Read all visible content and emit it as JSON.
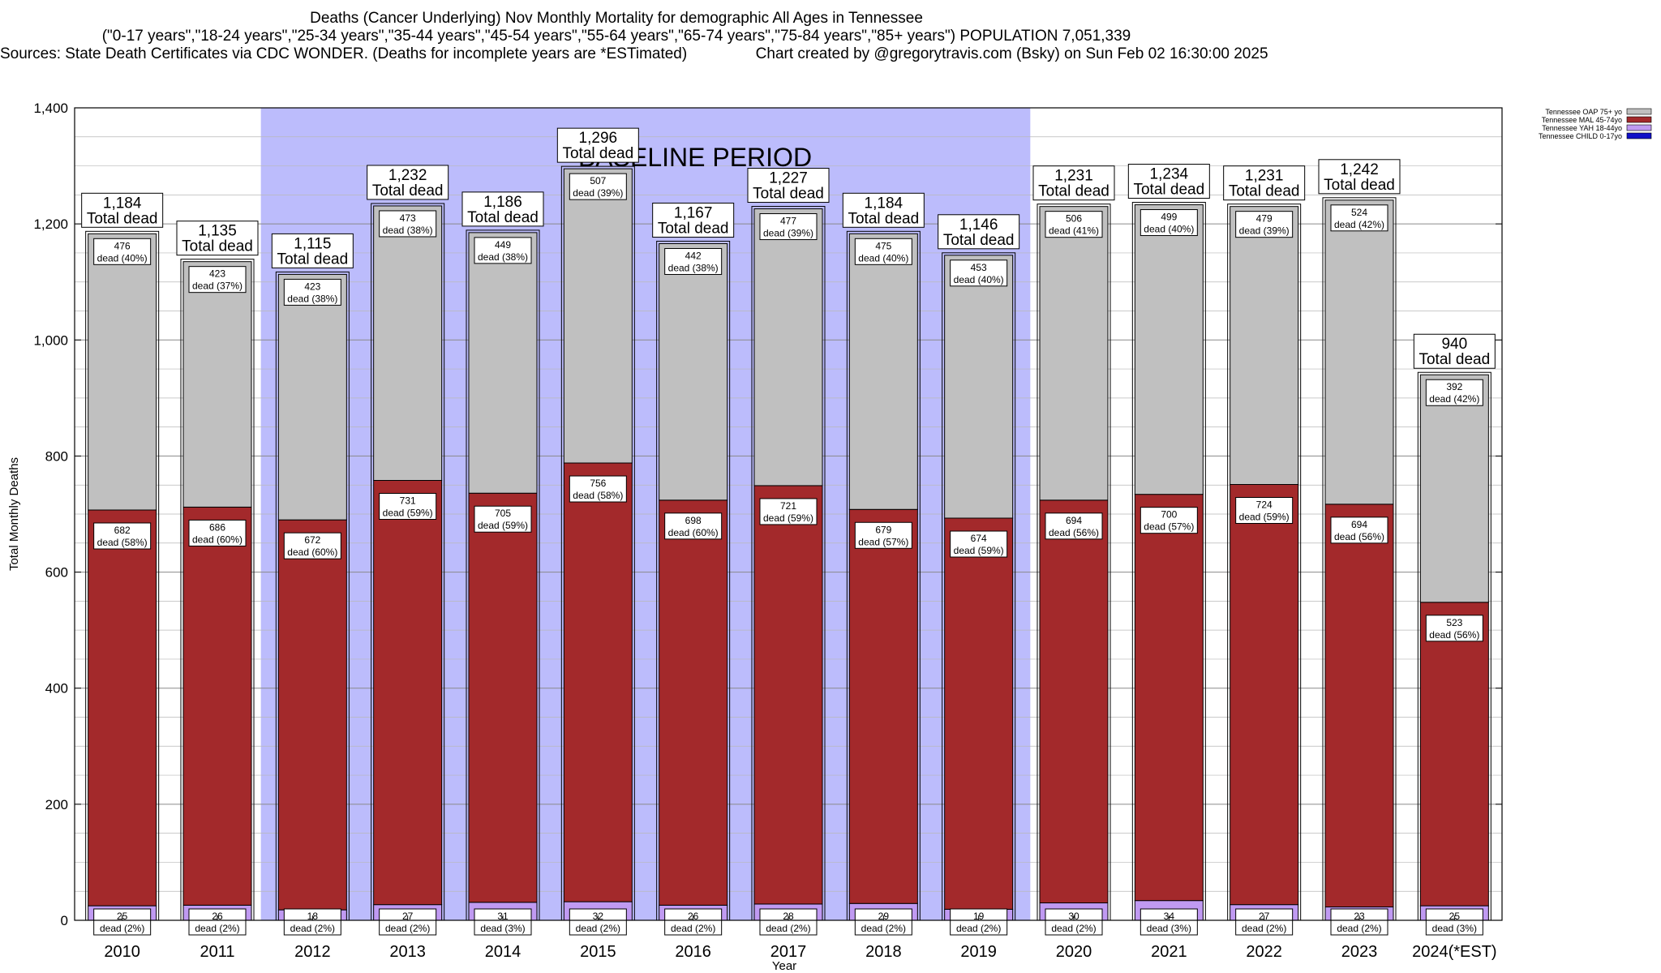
{
  "header": {
    "title": "Deaths (Cancer Underlying) Nov Monthly Mortality for demographic All Ages in Tennessee",
    "subtitle": "(\"0-17 years\",\"18-24 years\",\"25-34 years\",\"35-44 years\",\"45-54 years\",\"55-64 years\",\"65-74 years\",\"75-84 years\",\"85+ years\") POPULATION 7,051,339",
    "sources": "Sources: State Death Certificates via CDC WONDER. (Deaths for incomplete years are *ESTimated)",
    "credit": "Chart created by @gregorytravis.com (Bsky) on Sun Feb 02 16:30:00 2025"
  },
  "chart_data": {
    "type": "bar",
    "stacked": true,
    "xlabel": "Year",
    "ylabel": "Total Monthly Deaths",
    "ylim": [
      0,
      1400
    ],
    "yticks": [
      0,
      200,
      400,
      600,
      800,
      1000,
      1200,
      1400
    ],
    "ytick_labels": [
      "0",
      "200",
      "400",
      "600",
      "800",
      "1,000",
      "1,200",
      "1,400"
    ],
    "grid": true,
    "legend_position": "top-right",
    "categories": [
      "2010",
      "2011",
      "2012",
      "2013",
      "2014",
      "2015",
      "2016",
      "2017",
      "2018",
      "2019",
      "2020",
      "2021",
      "2022",
      "2023",
      "2024(*EST)"
    ],
    "series": [
      {
        "name": "Tennessee CHILD 0-17yo",
        "color": "#1010c8",
        "values": [
          0,
          0,
          0,
          0,
          0,
          0,
          0,
          0,
          0,
          0,
          0,
          0,
          0,
          0,
          0
        ]
      },
      {
        "name": "Tennessee YAH 18-44yo",
        "color": "#c09af2",
        "values": [
          25,
          26,
          18,
          27,
          31,
          32,
          26,
          28,
          29,
          19,
          30,
          34,
          27,
          23,
          25
        ],
        "labels": [
          "25",
          "26",
          "18",
          "27",
          "31",
          "32",
          "26",
          "28",
          "29",
          "19",
          "30",
          "34",
          "27",
          "23",
          "25"
        ],
        "pct_labels": [
          "dead (2%)",
          "dead (2%)",
          "dead (2%)",
          "dead (2%)",
          "dead (3%)",
          "dead (2%)",
          "dead (2%)",
          "dead (2%)",
          "dead (2%)",
          "dead (2%)",
          "dead (2%)",
          "dead (3%)",
          "dead (2%)",
          "dead (2%)",
          "dead (3%)"
        ]
      },
      {
        "name": "Tennessee MAL 45-74yo",
        "color": "#a3292b",
        "values": [
          682,
          686,
          672,
          731,
          705,
          756,
          698,
          721,
          679,
          674,
          694,
          700,
          724,
          694,
          523
        ],
        "labels": [
          "682",
          "686",
          "672",
          "731",
          "705",
          "756",
          "698",
          "721",
          "679",
          "674",
          "694",
          "700",
          "724",
          "694",
          "523"
        ],
        "pct_labels": [
          "dead (58%)",
          "dead (60%)",
          "dead (60%)",
          "dead (59%)",
          "dead (59%)",
          "dead (58%)",
          "dead (60%)",
          "dead (59%)",
          "dead (57%)",
          "dead (59%)",
          "dead (56%)",
          "dead (57%)",
          "dead (59%)",
          "dead (56%)",
          "dead (56%)"
        ]
      },
      {
        "name": "Tennessee OAP 75+ yo",
        "color": "#c0c0c0",
        "values": [
          476,
          423,
          423,
          473,
          449,
          507,
          442,
          477,
          475,
          453,
          506,
          499,
          479,
          524,
          392
        ],
        "labels": [
          "476",
          "423",
          "423",
          "473",
          "449",
          "507",
          "442",
          "477",
          "475",
          "453",
          "506",
          "499",
          "479",
          "524",
          "392"
        ],
        "pct_labels": [
          "dead (40%)",
          "dead (37%)",
          "dead (38%)",
          "dead (38%)",
          "dead (38%)",
          "dead (39%)",
          "dead (38%)",
          "dead (39%)",
          "dead (40%)",
          "dead (40%)",
          "dead (41%)",
          "dead (40%)",
          "dead (39%)",
          "dead (42%)",
          "dead (42%)"
        ]
      }
    ],
    "totals": [
      1184,
      1135,
      1115,
      1232,
      1186,
      1296,
      1167,
      1227,
      1184,
      1146,
      1231,
      1234,
      1231,
      1242,
      940
    ],
    "total_labels": [
      "1,184",
      "1,135",
      "1,115",
      "1,232",
      "1,186",
      "1,296",
      "1,167",
      "1,227",
      "1,184",
      "1,146",
      "1,231",
      "1,234",
      "1,231",
      "1,242",
      "940"
    ],
    "total_suffix": "Total dead",
    "baseline": {
      "label": "BASELINE PERIOD",
      "from": "2012",
      "to": "2019",
      "color": "#bcbcfc"
    },
    "colors": {
      "plot_border": "#000000",
      "grid": "#a0a0a0"
    }
  }
}
